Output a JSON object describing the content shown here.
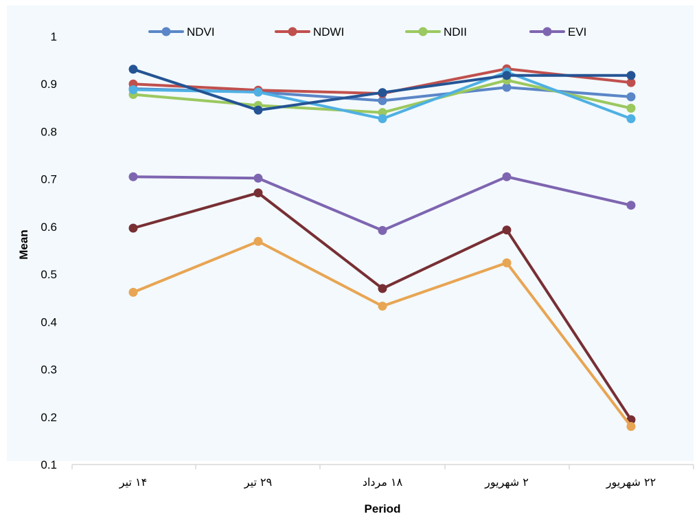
{
  "chart_data": {
    "type": "line",
    "title": "",
    "xlabel": "Period",
    "ylabel": "Mean",
    "ylim": [
      0.1,
      1.0
    ],
    "yticks": [
      "0.1",
      "0.2",
      "0.3",
      "0.4",
      "0.5",
      "0.6",
      "0.7",
      "0.8",
      "0.9",
      "1"
    ],
    "categories": [
      "۱۴ تیر",
      "۲۹ تیر",
      "۱۸ مرداد",
      "۲ شهریور",
      "۲۲ شهریور"
    ],
    "grid": false,
    "legend_position": "top",
    "legend": [
      {
        "name": "NDVI",
        "color": "#5b86c7"
      },
      {
        "name": "NDWI",
        "color": "#c0504d"
      },
      {
        "name": "NDII",
        "color": "#9bc85f"
      },
      {
        "name": "EVI",
        "color": "#7e65b0"
      }
    ],
    "series": [
      {
        "name": "NDVI",
        "color": "#5b86c7",
        "values": [
          0.89,
          0.883,
          0.865,
          0.893,
          0.873
        ]
      },
      {
        "name": "NDWI",
        "color": "#c0504d",
        "values": [
          0.9,
          0.887,
          0.88,
          0.932,
          0.903
        ]
      },
      {
        "name": "NDII",
        "color": "#9bc85f",
        "values": [
          0.878,
          0.855,
          0.84,
          0.908,
          0.849
        ]
      },
      {
        "name": "EVI",
        "color": "#7e65b0",
        "values": [
          0.705,
          0.702,
          0.592,
          0.705,
          0.645
        ]
      },
      {
        "color": "#4fb0e3",
        "values": [
          0.888,
          0.883,
          0.827,
          0.925,
          0.827
        ]
      },
      {
        "color": "#245494",
        "values": [
          0.931,
          0.845,
          0.882,
          0.918,
          0.918
        ]
      },
      {
        "color": "#772f34",
        "values": [
          0.597,
          0.671,
          0.47,
          0.593,
          0.194
        ]
      },
      {
        "color": "#e8a553",
        "values": [
          0.462,
          0.569,
          0.433,
          0.524,
          0.18
        ]
      }
    ]
  }
}
